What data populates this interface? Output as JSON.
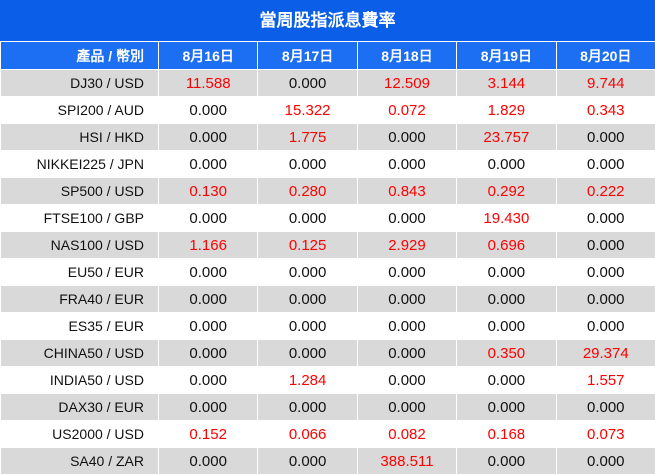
{
  "title": "當周股指派息費率",
  "columns": [
    "產品 / 幣別",
    "8月16日",
    "8月17日",
    "8月18日",
    "8月19日",
    "8月20日"
  ],
  "rows": [
    {
      "symbol": "DJ30 / USD",
      "values": [
        "11.588",
        "0.000",
        "12.509",
        "3.144",
        "9.744"
      ]
    },
    {
      "symbol": "SPI200 / AUD",
      "values": [
        "0.000",
        "15.322",
        "0.072",
        "1.829",
        "0.343"
      ]
    },
    {
      "symbol": "HSI / HKD",
      "values": [
        "0.000",
        "1.775",
        "0.000",
        "23.757",
        "0.000"
      ]
    },
    {
      "symbol": "NIKKEI225 / JPN",
      "values": [
        "0.000",
        "0.000",
        "0.000",
        "0.000",
        "0.000"
      ]
    },
    {
      "symbol": "SP500 / USD",
      "values": [
        "0.130",
        "0.280",
        "0.843",
        "0.292",
        "0.222"
      ]
    },
    {
      "symbol": "FTSE100 / GBP",
      "values": [
        "0.000",
        "0.000",
        "0.000",
        "19.430",
        "0.000"
      ]
    },
    {
      "symbol": "NAS100 / USD",
      "values": [
        "1.166",
        "0.125",
        "2.929",
        "0.696",
        "0.000"
      ]
    },
    {
      "symbol": "EU50 / EUR",
      "values": [
        "0.000",
        "0.000",
        "0.000",
        "0.000",
        "0.000"
      ]
    },
    {
      "symbol": "FRA40 / EUR",
      "values": [
        "0.000",
        "0.000",
        "0.000",
        "0.000",
        "0.000"
      ]
    },
    {
      "symbol": "ES35 / EUR",
      "values": [
        "0.000",
        "0.000",
        "0.000",
        "0.000",
        "0.000"
      ]
    },
    {
      "symbol": "CHINA50 / USD",
      "values": [
        "0.000",
        "0.000",
        "0.000",
        "0.350",
        "29.374"
      ]
    },
    {
      "symbol": "INDIA50 / USD",
      "values": [
        "0.000",
        "1.284",
        "0.000",
        "0.000",
        "1.557"
      ]
    },
    {
      "symbol": "DAX30 / EUR",
      "values": [
        "0.000",
        "0.000",
        "0.000",
        "0.000",
        "0.000"
      ]
    },
    {
      "symbol": "US2000 / USD",
      "values": [
        "0.152",
        "0.066",
        "0.082",
        "0.168",
        "0.073"
      ]
    },
    {
      "symbol": "SA40 / ZAR",
      "values": [
        "0.000",
        "0.000",
        "388.511",
        "0.000",
        "0.000"
      ]
    }
  ],
  "colors": {
    "title_bg": "#0a5ee8",
    "header_bg": "#1c6ef2",
    "row_shade": "#d9d9d9",
    "positive_value": "#ff0000",
    "zero_value": "#111111"
  }
}
